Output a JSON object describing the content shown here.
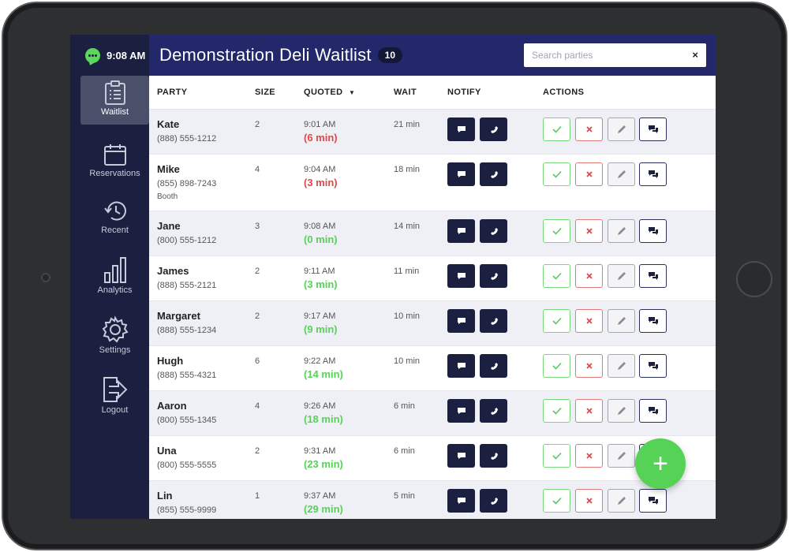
{
  "clock": "9:08 AM",
  "header": {
    "title": "Demonstration Deli Waitlist",
    "count": "10"
  },
  "search": {
    "placeholder": "Search parties",
    "clear_label": "×"
  },
  "nav": [
    {
      "label": "Waitlist",
      "icon": "clipboard-list-icon"
    },
    {
      "label": "Reservations",
      "icon": "calendar-icon"
    },
    {
      "label": "Recent",
      "icon": "history-icon"
    },
    {
      "label": "Analytics",
      "icon": "bar-chart-icon"
    },
    {
      "label": "Settings",
      "icon": "gear-icon"
    },
    {
      "label": "Logout",
      "icon": "logout-icon"
    }
  ],
  "columns": {
    "party": "PARTY",
    "size": "SIZE",
    "quoted": "QUOTED",
    "sort_indicator": "▼",
    "wait": "WAIT",
    "notify": "NOTIFY",
    "actions": "ACTIONS"
  },
  "rows": [
    {
      "name": "Kate",
      "phone": "(888) 555-1212",
      "note": "",
      "size": "2",
      "quoted_time": "9:01 AM",
      "quoted_delta": "(6 min)",
      "wait": "21 min",
      "overdue": true
    },
    {
      "name": "Mike",
      "phone": "(855) 898-7243",
      "note": "Booth",
      "size": "4",
      "quoted_time": "9:04 AM",
      "quoted_delta": "(3 min)",
      "wait": "18 min",
      "overdue": true
    },
    {
      "name": "Jane",
      "phone": "(800) 555-1212",
      "note": "",
      "size": "3",
      "quoted_time": "9:08 AM",
      "quoted_delta": "(0 min)",
      "wait": "14 min",
      "overdue": false
    },
    {
      "name": "James",
      "phone": "(888) 555-2121",
      "note": "",
      "size": "2",
      "quoted_time": "9:11 AM",
      "quoted_delta": "(3 min)",
      "wait": "11 min",
      "overdue": false
    },
    {
      "name": "Margaret",
      "phone": "(888) 555-1234",
      "note": "",
      "size": "2",
      "quoted_time": "9:17 AM",
      "quoted_delta": "(9 min)",
      "wait": "10 min",
      "overdue": false
    },
    {
      "name": "Hugh",
      "phone": "(888) 555-4321",
      "note": "",
      "size": "6",
      "quoted_time": "9:22 AM",
      "quoted_delta": "(14 min)",
      "wait": "10 min",
      "overdue": false
    },
    {
      "name": "Aaron",
      "phone": "(800) 555-1345",
      "note": "",
      "size": "4",
      "quoted_time": "9:26 AM",
      "quoted_delta": "(18 min)",
      "wait": "6 min",
      "overdue": false
    },
    {
      "name": "Una",
      "phone": "(800) 555-5555",
      "note": "",
      "size": "2",
      "quoted_time": "9:31 AM",
      "quoted_delta": "(23 min)",
      "wait": "6 min",
      "overdue": false
    },
    {
      "name": "Lin",
      "phone": "(855) 555-9999",
      "note": "",
      "size": "1",
      "quoted_time": "9:37 AM",
      "quoted_delta": "(29 min)",
      "wait": "5 min",
      "overdue": false
    }
  ],
  "colors": {
    "overdue": "#e04848",
    "ontime": "#56d356",
    "sidebar": "#1c2040",
    "header": "#22286a"
  },
  "fab": {
    "label": "+"
  }
}
